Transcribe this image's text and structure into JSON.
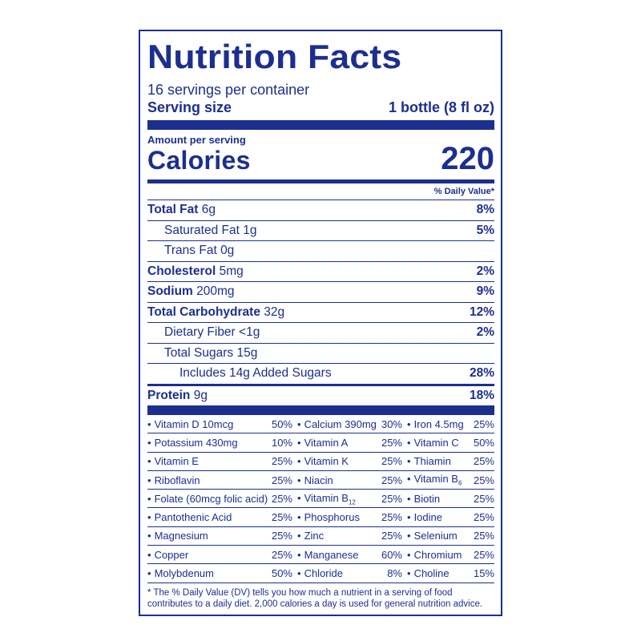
{
  "title": "Nutrition Facts",
  "servings_per_container": "16 servings per container",
  "serving_size_label": "Serving size",
  "serving_size_value": "1 bottle (8 fl oz)",
  "amount_per_serving": "Amount per serving",
  "calories_label": "Calories",
  "calories_value": "220",
  "daily_value_header": "% Daily Value*",
  "nutrients": [
    {
      "name": "Total Fat",
      "amount": "6g",
      "dv": "8%"
    },
    {
      "name": "Saturated Fat",
      "amount": "1g",
      "dv": "5%"
    },
    {
      "name": "Trans Fat",
      "amount": "0g",
      "dv": ""
    },
    {
      "name": "Cholesterol",
      "amount": "5mg",
      "dv": "2%"
    },
    {
      "name": "Sodium",
      "amount": "200mg",
      "dv": "9%"
    },
    {
      "name": "Total Carbohydrate",
      "amount": "32g",
      "dv": "12%"
    },
    {
      "name": "Dietary Fiber",
      "amount": "<1g",
      "dv": "2%"
    },
    {
      "name": "Total Sugars",
      "amount": "15g",
      "dv": ""
    },
    {
      "name": "Includes 14g Added Sugars",
      "amount": "",
      "dv": "28%"
    },
    {
      "name": "Protein",
      "amount": "9g",
      "dv": "18%"
    }
  ],
  "vitamins": [
    [
      {
        "name": "Vitamin D 10mcg",
        "dv": "50%"
      },
      {
        "name": "Calcium 390mg",
        "dv": "30%"
      },
      {
        "name": "Iron 4.5mg",
        "dv": "25%"
      }
    ],
    [
      {
        "name": "Potassium 430mg",
        "dv": "10%"
      },
      {
        "name": "Vitamin A",
        "dv": "25%"
      },
      {
        "name": "Vitamin C",
        "dv": "50%"
      }
    ],
    [
      {
        "name": "Vitamin E",
        "dv": "25%"
      },
      {
        "name": "Vitamin K",
        "dv": "25%"
      },
      {
        "name": "Thiamin",
        "dv": "25%"
      }
    ],
    [
      {
        "name": "Riboflavin",
        "dv": "25%"
      },
      {
        "name": "Niacin",
        "dv": "25%"
      },
      {
        "name": "Vitamin B",
        "sub": "6",
        "dv": "25%"
      }
    ],
    [
      {
        "name": "Folate (60mcg folic acid)",
        "dv": "25%"
      },
      {
        "name": "Vitamin B",
        "sub": "12",
        "dv": "25%"
      },
      {
        "name": "Biotin",
        "dv": "25%"
      }
    ],
    [
      {
        "name": "Pantothenic Acid",
        "dv": "25%"
      },
      {
        "name": "Phosphorus",
        "dv": "25%"
      },
      {
        "name": "Iodine",
        "dv": "25%"
      }
    ],
    [
      {
        "name": "Magnesium",
        "dv": "25%"
      },
      {
        "name": "Zinc",
        "dv": "25%"
      },
      {
        "name": "Selenium",
        "dv": "25%"
      }
    ],
    [
      {
        "name": "Copper",
        "dv": "25%"
      },
      {
        "name": "Manganese",
        "dv": "60%"
      },
      {
        "name": "Chromium",
        "dv": "25%"
      }
    ],
    [
      {
        "name": "Molybdenum",
        "dv": "50%"
      },
      {
        "name": "Chloride",
        "dv": "8%"
      },
      {
        "name": "Choline",
        "dv": "15%"
      }
    ]
  ],
  "footnote": "* The % Daily Value (DV) tells you how much a nutrient in a serving of food contributes to a daily diet. 2,000 calories a day is used for general nutrition advice.",
  "colors": {
    "ink": "#1c2f8f",
    "background": "#ffffff"
  }
}
